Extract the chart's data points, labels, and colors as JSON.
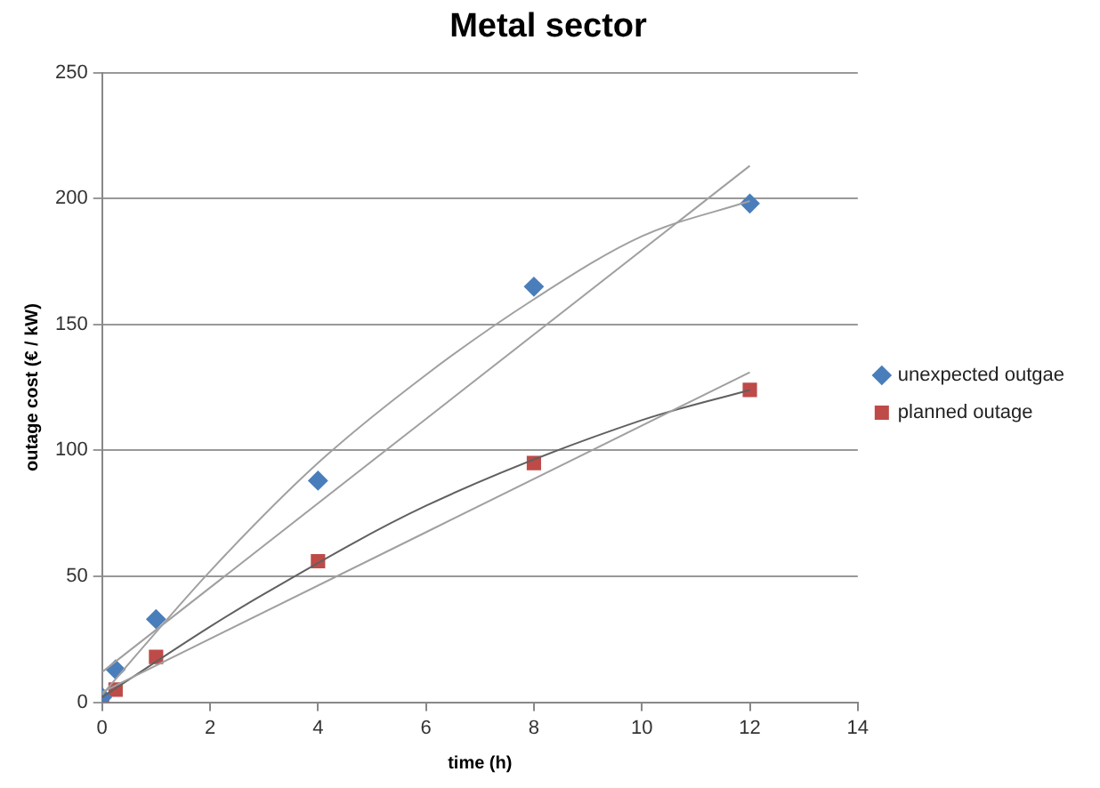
{
  "chart_data": {
    "type": "scatter",
    "title": "Metal sector",
    "xlabel": "time (h)",
    "ylabel": "outage cost (€ / kW)",
    "xlim": [
      0,
      14
    ],
    "xticks": [
      0,
      2,
      4,
      6,
      8,
      10,
      12,
      14
    ],
    "ylim": [
      0,
      250
    ],
    "yticks": [
      0,
      50,
      100,
      150,
      200,
      250
    ],
    "grid": "y",
    "legend": "right",
    "series": [
      {
        "name": "unexpected outgae",
        "color": "#4a7ebb",
        "marker": "diamond",
        "x": [
          0,
          0.25,
          1,
          4,
          8,
          12
        ],
        "values": [
          2,
          13,
          33,
          88,
          165,
          198
        ]
      },
      {
        "name": "planned outage",
        "color": "#be4b48",
        "marker": "square",
        "x": [
          0,
          0.25,
          1,
          4,
          8,
          12
        ],
        "values": [
          0,
          5,
          18,
          56,
          95,
          124
        ]
      },
      {
        "type": "line",
        "color": "#a0a0a0",
        "marker": "none",
        "x": [
          0,
          12
        ],
        "values": [
          12,
          213
        ]
      },
      {
        "type": "line",
        "color": "#a0a0a0",
        "marker": "none",
        "x": [
          0,
          2,
          4,
          6,
          8,
          10,
          12
        ],
        "values": [
          3,
          52,
          95,
          130,
          160,
          185,
          199
        ]
      },
      {
        "type": "line",
        "color": "#a0a0a0",
        "marker": "none",
        "x": [
          0,
          12
        ],
        "values": [
          4,
          131
        ]
      },
      {
        "type": "line",
        "color": "#606060",
        "marker": "none",
        "x": [
          0,
          2,
          3,
          6,
          10,
          12
        ],
        "values": [
          2,
          30,
          43,
          78,
          112,
          124
        ]
      }
    ]
  }
}
